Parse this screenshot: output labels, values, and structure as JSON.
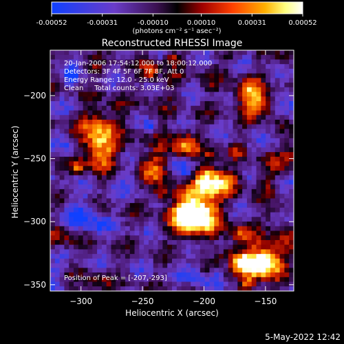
{
  "colorbar": {
    "tick_labels": [
      "-0.00052",
      "-0.00031",
      "-0.00010",
      "0.00010",
      "0.00031",
      "0.00052"
    ],
    "tick_values": [
      -0.00052,
      -0.00031,
      -0.0001,
      0.0001,
      0.00031,
      0.00052
    ],
    "range": [
      -0.00052,
      0.00052
    ],
    "unit_label": "(photons cm⁻² s⁻¹ asec⁻²)"
  },
  "chart_data": {
    "type": "heatmap",
    "title": "Reconstructed RHESSI Image",
    "xlabel": "Heliocentric X (arcsec)",
    "ylabel": "Heliocentric Y (arcsec)",
    "xlim": [
      -325,
      -127
    ],
    "ylim": [
      -355,
      -164
    ],
    "x_ticks": [
      -300,
      -250,
      -200,
      -150
    ],
    "x_tick_labels": [
      "−300",
      "−250",
      "−200",
      "−150"
    ],
    "y_ticks": [
      -200,
      -250,
      -300,
      -350
    ],
    "y_tick_labels": [
      "−200",
      "−250",
      "−300",
      "−350"
    ],
    "annotations": [
      "20-Jan-2006 17:54:12.000 to 18:00:12.000",
      "Detectors: 3F 4F 5F 6F 7F 8F, Att 0",
      "Energy Range: 12.0 - 25.0 keV",
      "Clean     Total counts: 3.03E+03"
    ],
    "peak_label": "Position of Peak = [-207,-293]",
    "peak_position": [
      -207,
      -293
    ],
    "colormap": [
      "#1040ff",
      "#6a3cc8",
      "#5a1a70",
      "#000000",
      "#8a0000",
      "#e03000",
      "#ff9000",
      "#ffff60",
      "#ffffff"
    ]
  },
  "footer": {
    "timestamp": "5-May-2022 12:42"
  }
}
